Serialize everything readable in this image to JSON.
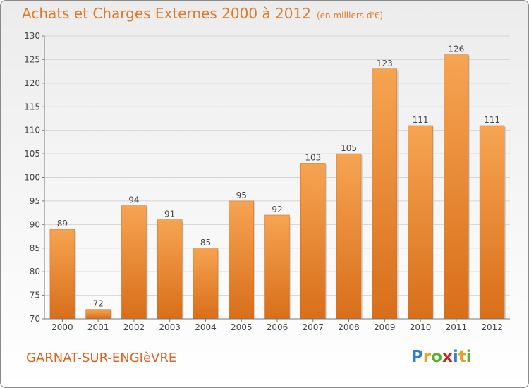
{
  "header": {
    "title": "Achats et Charges Externes 2000 à 2012",
    "subtitle": "(en milliers d'€)"
  },
  "commune": "GARNAT-SUR-ENGIèVRE",
  "logo": {
    "letters": [
      "P",
      "r",
      "o",
      "x",
      "i",
      "t",
      "i"
    ],
    "colors": [
      "#2f7fd1",
      "#e8a020",
      "#58b030",
      "#d02020",
      "#2f7fd1",
      "#e8a020",
      "#58b030"
    ]
  },
  "colors": {
    "bar_top": "#f6a452",
    "bar_bottom": "#d86e1a",
    "accent": "#e07a2a"
  },
  "chart_data": {
    "type": "bar",
    "title": "Achats et Charges Externes 2000 à 2012",
    "categories": [
      "2000",
      "2001",
      "2002",
      "2003",
      "2004",
      "2005",
      "2006",
      "2007",
      "2008",
      "2009",
      "2010",
      "2011",
      "2012"
    ],
    "values": [
      89,
      72,
      94,
      91,
      85,
      95,
      92,
      103,
      105,
      123,
      111,
      126,
      111
    ],
    "ylim": [
      70,
      130
    ],
    "yticks": [
      70,
      75,
      80,
      85,
      90,
      95,
      100,
      105,
      110,
      115,
      120,
      125,
      130
    ],
    "grid": true,
    "xlabel": "",
    "ylabel": ""
  }
}
